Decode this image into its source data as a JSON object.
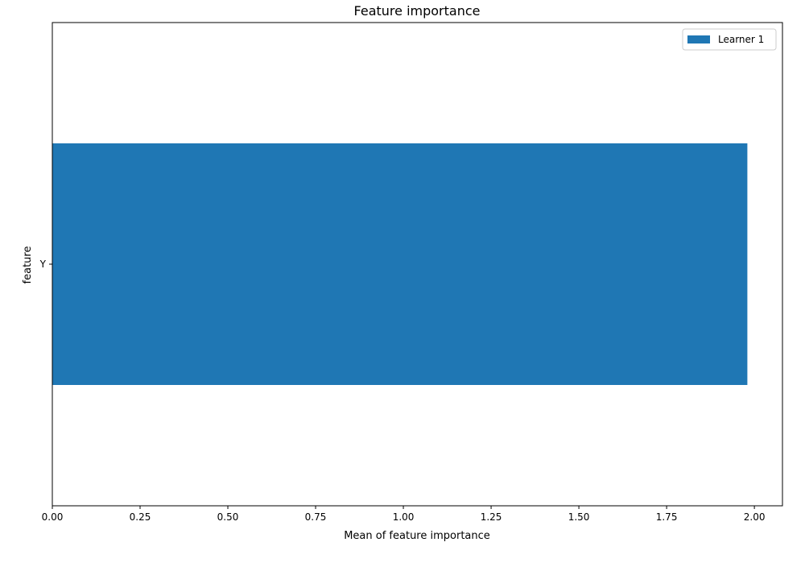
{
  "chart_data": {
    "type": "bar",
    "orientation": "horizontal",
    "title": "Feature importance",
    "xlabel": "Mean of feature importance",
    "ylabel": "feature",
    "categories": [
      "Y"
    ],
    "series": [
      {
        "name": "Learner 1",
        "values": [
          1.98
        ]
      }
    ],
    "xlim": [
      0,
      2.08
    ],
    "xticks": [
      0.0,
      0.25,
      0.5,
      0.75,
      1.0,
      1.25,
      1.5,
      1.75,
      2.0
    ],
    "xtick_labels": [
      "0.00",
      "0.25",
      "0.50",
      "0.75",
      "1.00",
      "1.25",
      "1.50",
      "1.75",
      "2.00"
    ],
    "grid": false,
    "legend_position": "top-right",
    "colors": {
      "series": "#1f77b4",
      "axis": "#000000",
      "background": "#ffffff"
    }
  }
}
